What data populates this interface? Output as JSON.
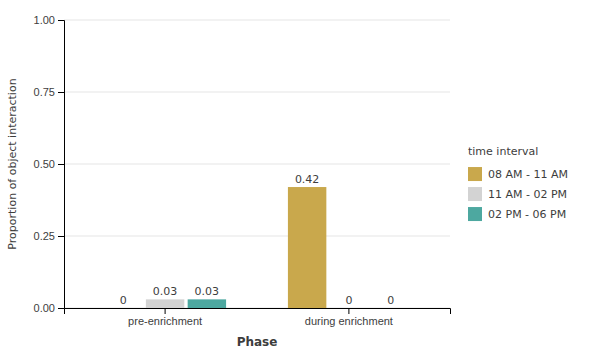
{
  "chart_data": {
    "type": "bar",
    "categories": [
      "pre-enrichment",
      "during enrichment"
    ],
    "series": [
      {
        "name": "08 AM - 11 AM",
        "color": "#C9A84C",
        "values": [
          0,
          0.42
        ]
      },
      {
        "name": "11 AM - 02 PM",
        "color": "#D3D3D3",
        "values": [
          0.03,
          0
        ]
      },
      {
        "name": "02 PM - 06 PM",
        "color": "#4DA8A0",
        "values": [
          0.03,
          0
        ]
      }
    ],
    "xlabel": "Phase",
    "ylabel": "Proportion of object interaction",
    "ylim": [
      0,
      1.0
    ],
    "yticks": [
      {
        "value": 0.0,
        "label": "0.00"
      },
      0.25,
      {
        "value": 0.5,
        "label": "0.50"
      },
      0.75,
      {
        "value": 1.0,
        "label": "1.00"
      }
    ],
    "grid": true,
    "data_labels": true,
    "legend": "right",
    "legend_title": "time interval"
  }
}
